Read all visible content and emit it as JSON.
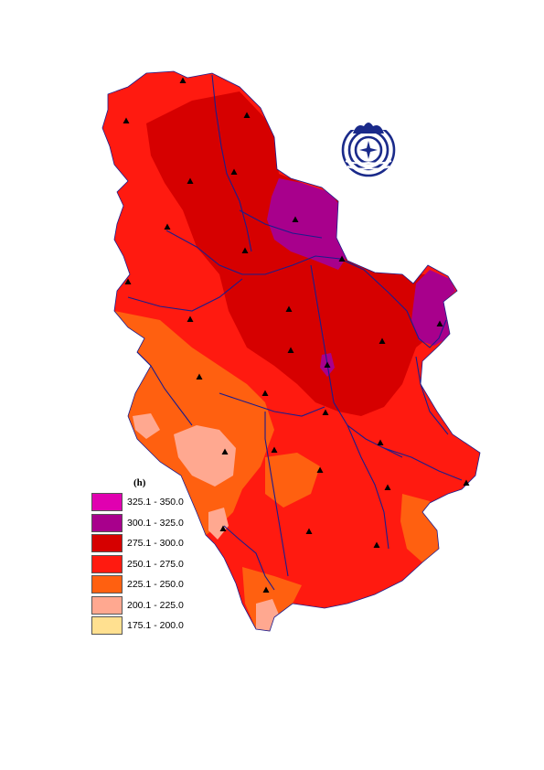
{
  "legend": {
    "title": "(h)",
    "classes": [
      {
        "label": "325.1 - 350.0",
        "color": "#e000b0"
      },
      {
        "label": "300.1 - 325.0",
        "color": "#a8008c"
      },
      {
        "label": "275.1 - 300.0",
        "color": "#d60000"
      },
      {
        "label": "250.1 - 275.0",
        "color": "#ff1a10"
      },
      {
        "label": "225.1 - 250.0",
        "color": "#ff6010"
      },
      {
        "label": "200.1 - 225.0",
        "color": "#ffa890"
      },
      {
        "label": "175.1 - 200.0",
        "color": "#ffe090"
      }
    ]
  },
  "colors": {
    "river": "#1c1c8c",
    "station": "#000000",
    "logo": "#1a2a8a"
  },
  "station_count": 28
}
